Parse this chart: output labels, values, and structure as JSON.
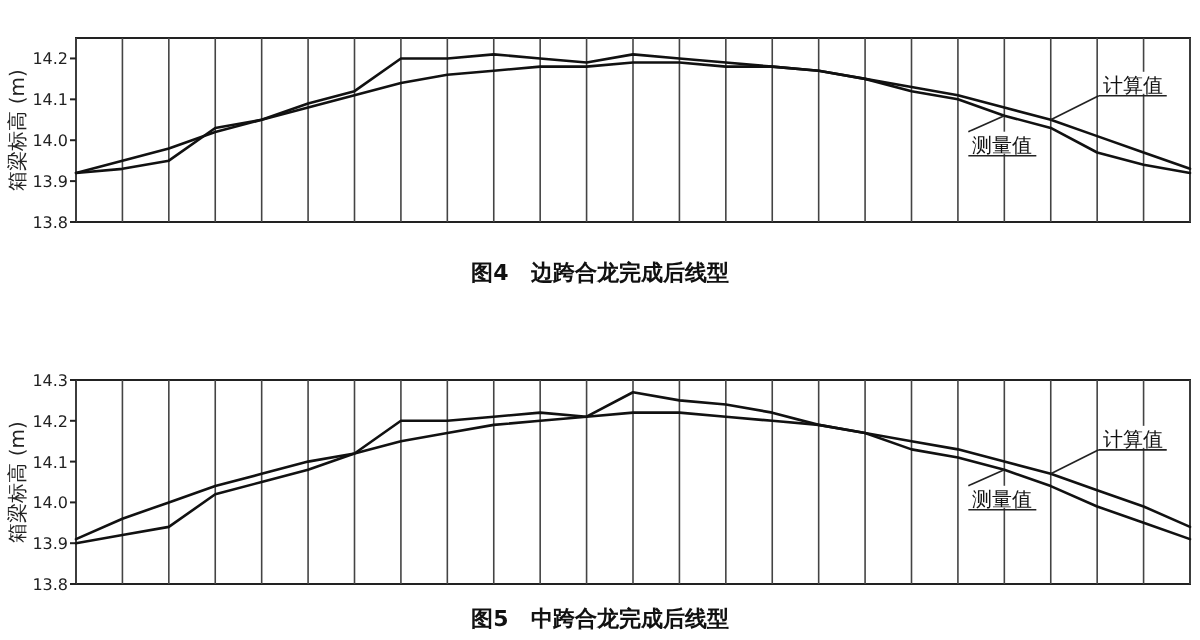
{
  "chart_data": [
    {
      "type": "line",
      "title": "图4　边跨合龙完成后线型",
      "ylabel": "箱梁标高 (m)",
      "categories": [
        null,
        null,
        null,
        null,
        null,
        null,
        null,
        null,
        null,
        null,
        null,
        null,
        null,
        null,
        null,
        null,
        null,
        null,
        null,
        null,
        null,
        null,
        null,
        null,
        null
      ],
      "series": [
        {
          "name": "测量值",
          "color": "#111111",
          "values": [
            13.92,
            13.93,
            13.95,
            14.03,
            14.05,
            14.09,
            14.12,
            14.2,
            14.2,
            14.21,
            14.2,
            14.19,
            14.21,
            14.2,
            14.19,
            14.18,
            14.17,
            14.15,
            14.12,
            14.1,
            14.06,
            14.03,
            13.97,
            13.94,
            13.92
          ]
        },
        {
          "name": "计算值",
          "color": "#111111",
          "values": [
            13.92,
            13.95,
            13.98,
            14.02,
            14.05,
            14.08,
            14.11,
            14.14,
            14.16,
            14.17,
            14.18,
            14.18,
            14.19,
            14.19,
            14.18,
            14.18,
            14.17,
            14.15,
            14.13,
            14.11,
            14.08,
            14.05,
            14.01,
            13.97,
            13.93
          ]
        }
      ],
      "ylim": [
        13.8,
        14.25
      ],
      "yticks": [
        13.8,
        13.9,
        {
          "value": 14.0,
          "label": "14.0"
        },
        14.1,
        14.2
      ],
      "grid": "x",
      "legend": false,
      "marker": "none",
      "line_style": "solid"
    },
    {
      "type": "line",
      "title": "图5　中跨合龙完成后线型",
      "ylabel": "箱梁标高 (m)",
      "categories": [
        null,
        null,
        null,
        null,
        null,
        null,
        null,
        null,
        null,
        null,
        null,
        null,
        null,
        null,
        null,
        null,
        null,
        null,
        null,
        null,
        null,
        null,
        null,
        null,
        null
      ],
      "series": [
        {
          "name": "测量值",
          "color": "#111111",
          "values": [
            13.9,
            13.92,
            13.94,
            14.02,
            14.05,
            14.08,
            14.12,
            14.2,
            14.2,
            14.21,
            14.22,
            14.21,
            14.27,
            14.25,
            14.24,
            14.22,
            14.19,
            14.17,
            14.13,
            14.11,
            14.08,
            14.04,
            13.99,
            13.95,
            13.91
          ]
        },
        {
          "name": "计算值",
          "color": "#111111",
          "values": [
            13.91,
            13.96,
            14.0,
            14.04,
            14.07,
            14.1,
            14.12,
            14.15,
            14.17,
            14.19,
            14.2,
            14.21,
            14.22,
            14.22,
            14.21,
            14.2,
            14.19,
            14.17,
            14.15,
            14.13,
            14.1,
            14.07,
            14.03,
            13.99,
            13.94
          ]
        }
      ],
      "ylim": [
        13.8,
        14.3
      ],
      "yticks": [
        13.8,
        13.9,
        {
          "value": 14.0,
          "label": "14.0"
        },
        14.1,
        14.2,
        14.3
      ],
      "grid": "x",
      "legend": false,
      "marker": "none",
      "line_style": "solid"
    }
  ]
}
